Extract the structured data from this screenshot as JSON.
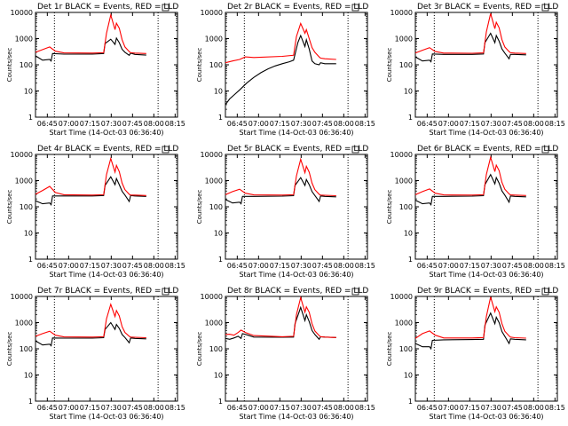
{
  "chart_data": [
    {
      "type": "line",
      "title": "Det 1r BLACK = Events, RED = LLD",
      "ylabel": "Counts/sec",
      "xlabel": "Start Time (14-Oct-03 06:36:40)",
      "x_ticks": [
        "06:45",
        "07:00",
        "07:15",
        "07:30",
        "07:45",
        "08:00",
        "08:15"
      ],
      "y_ticks": [
        "1",
        "10",
        "100",
        "1000",
        "10000"
      ],
      "ylim": [
        1,
        10000
      ],
      "yscale": "log",
      "dotted_lines_x": [
        "06:50",
        "08:03"
      ],
      "series": [
        {
          "name": "Events",
          "color": "#000000",
          "x": [
            0,
            5,
            10,
            11,
            12,
            20,
            40,
            48,
            49,
            53,
            56,
            57,
            59,
            61,
            63,
            66,
            67,
            70,
            78
          ],
          "y": [
            220,
            150,
            160,
            140,
            270,
            255,
            255,
            270,
            650,
            950,
            600,
            1050,
            700,
            390,
            300,
            230,
            280,
            250,
            235
          ]
        },
        {
          "name": "LLD",
          "color": "#ff0000",
          "x": [
            0,
            5,
            10,
            14,
            20,
            40,
            48,
            50,
            53,
            56,
            57,
            59,
            61,
            63,
            66,
            67,
            70,
            78
          ],
          "y": [
            300,
            380,
            480,
            330,
            285,
            280,
            290,
            1600,
            8000,
            2200,
            3900,
            2500,
            900,
            480,
            320,
            290,
            280,
            270
          ]
        }
      ]
    },
    {
      "type": "line",
      "title": "Det 2r BLACK = Events, RED = LLD",
      "ylabel": "Counts/sec",
      "xlabel": "Start Time (14-Oct-03 06:36:40)",
      "x_ticks": [
        "06:45",
        "07:00",
        "07:15",
        "07:30",
        "07:45",
        "08:00",
        "08:15"
      ],
      "y_ticks": [
        "1",
        "10",
        "100",
        "1000",
        "10000"
      ],
      "ylim": [
        1,
        10000
      ],
      "yscale": "log",
      "dotted_lines_x": [
        "06:50",
        "08:03"
      ],
      "series": [
        {
          "name": "Events",
          "color": "#000000",
          "x": [
            0,
            3,
            6,
            10,
            15,
            20,
            25,
            30,
            35,
            40,
            45,
            48,
            49,
            51,
            53,
            56,
            57,
            59,
            61,
            63,
            66,
            67,
            70,
            78
          ],
          "y": [
            3,
            5,
            7,
            11,
            20,
            33,
            50,
            70,
            90,
            110,
            130,
            150,
            250,
            700,
            1300,
            500,
            900,
            400,
            140,
            110,
            100,
            120,
            110,
            110
          ]
        },
        {
          "name": "LLD",
          "color": "#ff0000",
          "x": [
            0,
            5,
            10,
            14,
            20,
            40,
            48,
            50,
            53,
            56,
            57,
            59,
            61,
            63,
            66,
            67,
            70,
            78
          ],
          "y": [
            120,
            140,
            160,
            200,
            190,
            210,
            230,
            1200,
            3800,
            1600,
            2200,
            1000,
            450,
            300,
            200,
            180,
            170,
            160
          ]
        }
      ]
    },
    {
      "type": "line",
      "title": "Det 3r BLACK = Events, RED = LLD",
      "ylabel": "Counts/sec",
      "xlabel": "Start Time (14-Oct-03 06:36:40)",
      "x_ticks": [
        "06:45",
        "07:00",
        "07:15",
        "07:30",
        "07:45",
        "08:00",
        "08:15"
      ],
      "y_ticks": [
        "1",
        "10",
        "100",
        "1000",
        "10000"
      ],
      "ylim": [
        1,
        10000
      ],
      "yscale": "log",
      "dotted_lines_x": [
        "06:50",
        "08:03"
      ],
      "series": [
        {
          "name": "Events",
          "color": "#000000",
          "x": [
            0,
            5,
            10,
            11,
            12,
            20,
            40,
            48,
            49,
            53,
            56,
            57,
            59,
            61,
            63,
            66,
            67,
            70,
            78
          ],
          "y": [
            200,
            140,
            150,
            130,
            260,
            250,
            250,
            260,
            700,
            1600,
            700,
            1300,
            800,
            400,
            280,
            170,
            250,
            250,
            240
          ]
        },
        {
          "name": "LLD",
          "color": "#ff0000",
          "x": [
            0,
            5,
            10,
            14,
            20,
            40,
            48,
            50,
            53,
            56,
            57,
            59,
            61,
            63,
            66,
            67,
            70,
            78
          ],
          "y": [
            280,
            360,
            450,
            320,
            280,
            275,
            285,
            1800,
            9000,
            2400,
            4200,
            2600,
            900,
            480,
            320,
            290,
            280,
            270
          ]
        }
      ]
    },
    {
      "type": "line",
      "title": "Det 4r BLACK = Events, RED = LLD",
      "ylabel": "Counts/sec",
      "xlabel": "Start Time (14-Oct-03 06:36:40)",
      "x_ticks": [
        "06:45",
        "07:00",
        "07:15",
        "07:30",
        "07:45",
        "08:00",
        "08:15"
      ],
      "y_ticks": [
        "1",
        "10",
        "100",
        "1000",
        "10000"
      ],
      "ylim": [
        1,
        10000
      ],
      "yscale": "log",
      "dotted_lines_x": [
        "06:50",
        "08:03"
      ],
      "series": [
        {
          "name": "Events",
          "color": "#000000",
          "x": [
            0,
            5,
            10,
            11,
            12,
            20,
            40,
            48,
            49,
            53,
            56,
            57,
            59,
            61,
            63,
            66,
            67,
            70,
            78
          ],
          "y": [
            170,
            130,
            140,
            120,
            260,
            260,
            260,
            270,
            650,
            1400,
            700,
            1200,
            700,
            390,
            280,
            160,
            270,
            260,
            250
          ]
        },
        {
          "name": "LLD",
          "color": "#ff0000",
          "x": [
            0,
            5,
            10,
            14,
            20,
            40,
            48,
            50,
            53,
            56,
            57,
            59,
            61,
            63,
            66,
            67,
            70,
            78
          ],
          "y": [
            300,
            420,
            600,
            350,
            290,
            280,
            290,
            1700,
            7000,
            2100,
            3800,
            2200,
            800,
            450,
            300,
            280,
            280,
            270
          ]
        }
      ]
    },
    {
      "type": "line",
      "title": "Det 5r BLACK = Events, RED = LLD",
      "ylabel": "Counts/sec",
      "xlabel": "Start Time (14-Oct-03 06:36:40)",
      "x_ticks": [
        "06:45",
        "07:00",
        "07:15",
        "07:30",
        "07:45",
        "08:00",
        "08:15"
      ],
      "y_ticks": [
        "1",
        "10",
        "100",
        "1000",
        "10000"
      ],
      "ylim": [
        1,
        10000
      ],
      "yscale": "log",
      "dotted_lines_x": [
        "06:50",
        "08:03"
      ],
      "series": [
        {
          "name": "Events",
          "color": "#000000",
          "x": [
            0,
            5,
            10,
            11,
            12,
            20,
            40,
            48,
            49,
            53,
            56,
            57,
            59,
            61,
            63,
            66,
            67,
            70,
            78
          ],
          "y": [
            190,
            140,
            150,
            130,
            250,
            250,
            255,
            265,
            650,
            1300,
            650,
            1100,
            700,
            380,
            270,
            160,
            260,
            250,
            240
          ]
        },
        {
          "name": "LLD",
          "color": "#ff0000",
          "x": [
            0,
            5,
            10,
            14,
            20,
            40,
            48,
            50,
            53,
            56,
            57,
            59,
            61,
            63,
            66,
            67,
            70,
            78
          ],
          "y": [
            290,
            380,
            470,
            330,
            285,
            280,
            290,
            1500,
            6500,
            2000,
            3500,
            2100,
            800,
            450,
            300,
            280,
            275,
            265
          ]
        }
      ]
    },
    {
      "type": "line",
      "title": "Det 6r BLACK = Events, RED = LLD",
      "ylabel": "Counts/sec",
      "xlabel": "Start Time (14-Oct-03 06:36:40)",
      "x_ticks": [
        "06:45",
        "07:00",
        "07:15",
        "07:30",
        "07:45",
        "08:00",
        "08:15"
      ],
      "y_ticks": [
        "1",
        "10",
        "100",
        "1000",
        "10000"
      ],
      "ylim": [
        1,
        10000
      ],
      "yscale": "log",
      "dotted_lines_x": [
        "06:50",
        "08:03"
      ],
      "series": [
        {
          "name": "Events",
          "color": "#000000",
          "x": [
            0,
            5,
            10,
            11,
            12,
            20,
            40,
            48,
            49,
            53,
            56,
            57,
            59,
            61,
            63,
            66,
            67,
            70,
            78
          ],
          "y": [
            180,
            130,
            140,
            120,
            250,
            250,
            255,
            265,
            700,
            1700,
            750,
            1300,
            800,
            400,
            280,
            150,
            260,
            250,
            240
          ]
        },
        {
          "name": "LLD",
          "color": "#ff0000",
          "x": [
            0,
            5,
            10,
            14,
            20,
            40,
            48,
            50,
            53,
            56,
            57,
            59,
            61,
            63,
            66,
            67,
            70,
            78
          ],
          "y": [
            290,
            380,
            480,
            330,
            285,
            280,
            290,
            1700,
            7800,
            2200,
            3900,
            2400,
            850,
            470,
            310,
            285,
            280,
            270
          ]
        }
      ]
    },
    {
      "type": "line",
      "title": "Det 7r BLACK = Events, RED = LLD",
      "ylabel": "Counts/sec",
      "xlabel": "Start Time (14-Oct-03 06:36:40)",
      "x_ticks": [
        "06:45",
        "07:00",
        "07:15",
        "07:30",
        "07:45",
        "08:00",
        "08:15"
      ],
      "y_ticks": [
        "1",
        "10",
        "100",
        "1000",
        "10000"
      ],
      "ylim": [
        1,
        10000
      ],
      "yscale": "log",
      "dotted_lines_x": [
        "06:50",
        "08:03"
      ],
      "series": [
        {
          "name": "Events",
          "color": "#000000",
          "x": [
            0,
            5,
            10,
            11,
            12,
            20,
            40,
            48,
            49,
            53,
            56,
            57,
            59,
            61,
            63,
            66,
            67,
            70,
            78
          ],
          "y": [
            200,
            140,
            150,
            130,
            260,
            255,
            255,
            265,
            550,
            1000,
            550,
            850,
            600,
            350,
            270,
            170,
            260,
            250,
            240
          ]
        },
        {
          "name": "LLD",
          "color": "#ff0000",
          "x": [
            0,
            5,
            10,
            14,
            20,
            40,
            48,
            50,
            53,
            56,
            57,
            59,
            61,
            63,
            66,
            67,
            70,
            78
          ],
          "y": [
            300,
            380,
            470,
            330,
            285,
            280,
            290,
            1400,
            5000,
            1700,
            2900,
            1800,
            700,
            420,
            300,
            280,
            275,
            265
          ]
        }
      ]
    },
    {
      "type": "line",
      "title": "Det 8r BLACK = Events, RED = LLD",
      "ylabel": "Counts/sec",
      "xlabel": "Start Time (14-Oct-03 06:36:40)",
      "x_ticks": [
        "06:45",
        "07:00",
        "07:15",
        "07:30",
        "07:45",
        "08:00",
        "08:15"
      ],
      "y_ticks": [
        "1",
        "10",
        "100",
        "1000",
        "10000"
      ],
      "ylim": [
        1,
        10000
      ],
      "yscale": "log",
      "dotted_lines_x": [
        "06:50",
        "08:03"
      ],
      "series": [
        {
          "name": "Events",
          "color": "#000000",
          "x": [
            0,
            3,
            6,
            9,
            11,
            12,
            16,
            20,
            40,
            48,
            49,
            53,
            56,
            57,
            59,
            61,
            63,
            66,
            67,
            70,
            78
          ],
          "y": [
            250,
            230,
            260,
            300,
            250,
            380,
            330,
            280,
            275,
            280,
            900,
            3800,
            1200,
            2000,
            1100,
            500,
            350,
            230,
            290,
            280,
            270
          ]
        },
        {
          "name": "LLD",
          "color": "#ff0000",
          "x": [
            0,
            3,
            6,
            9,
            11,
            14,
            20,
            40,
            48,
            50,
            53,
            56,
            57,
            59,
            61,
            63,
            66,
            67,
            70,
            78
          ],
          "y": [
            350,
            360,
            330,
            420,
            520,
            420,
            320,
            290,
            300,
            2000,
            9000,
            2500,
            4000,
            2500,
            900,
            480,
            320,
            290,
            280,
            270
          ]
        }
      ]
    },
    {
      "type": "line",
      "title": "Det 9r BLACK = Events, RED = LLD",
      "ylabel": "Counts/sec",
      "xlabel": "Start Time (14-Oct-03 06:36:40)",
      "x_ticks": [
        "06:45",
        "07:00",
        "07:15",
        "07:30",
        "07:45",
        "08:00",
        "08:15"
      ],
      "y_ticks": [
        "1",
        "10",
        "100",
        "1000",
        "10000"
      ],
      "ylim": [
        1,
        10000
      ],
      "yscale": "log",
      "dotted_lines_x": [
        "06:50",
        "08:03"
      ],
      "series": [
        {
          "name": "Events",
          "color": "#000000",
          "x": [
            0,
            5,
            10,
            11,
            12,
            20,
            40,
            48,
            49,
            53,
            56,
            57,
            59,
            61,
            63,
            66,
            67,
            70,
            78
          ],
          "y": [
            160,
            120,
            120,
            100,
            210,
            220,
            225,
            230,
            800,
            2300,
            900,
            1600,
            1000,
            450,
            300,
            160,
            240,
            230,
            220
          ]
        },
        {
          "name": "LLD",
          "color": "#ff0000",
          "x": [
            0,
            5,
            10,
            14,
            20,
            40,
            48,
            50,
            53,
            56,
            57,
            59,
            61,
            63,
            66,
            67,
            70,
            78
          ],
          "y": [
            250,
            380,
            480,
            330,
            260,
            260,
            270,
            1700,
            9500,
            2600,
            4000,
            2500,
            900,
            470,
            310,
            280,
            265,
            255
          ]
        }
      ]
    }
  ]
}
